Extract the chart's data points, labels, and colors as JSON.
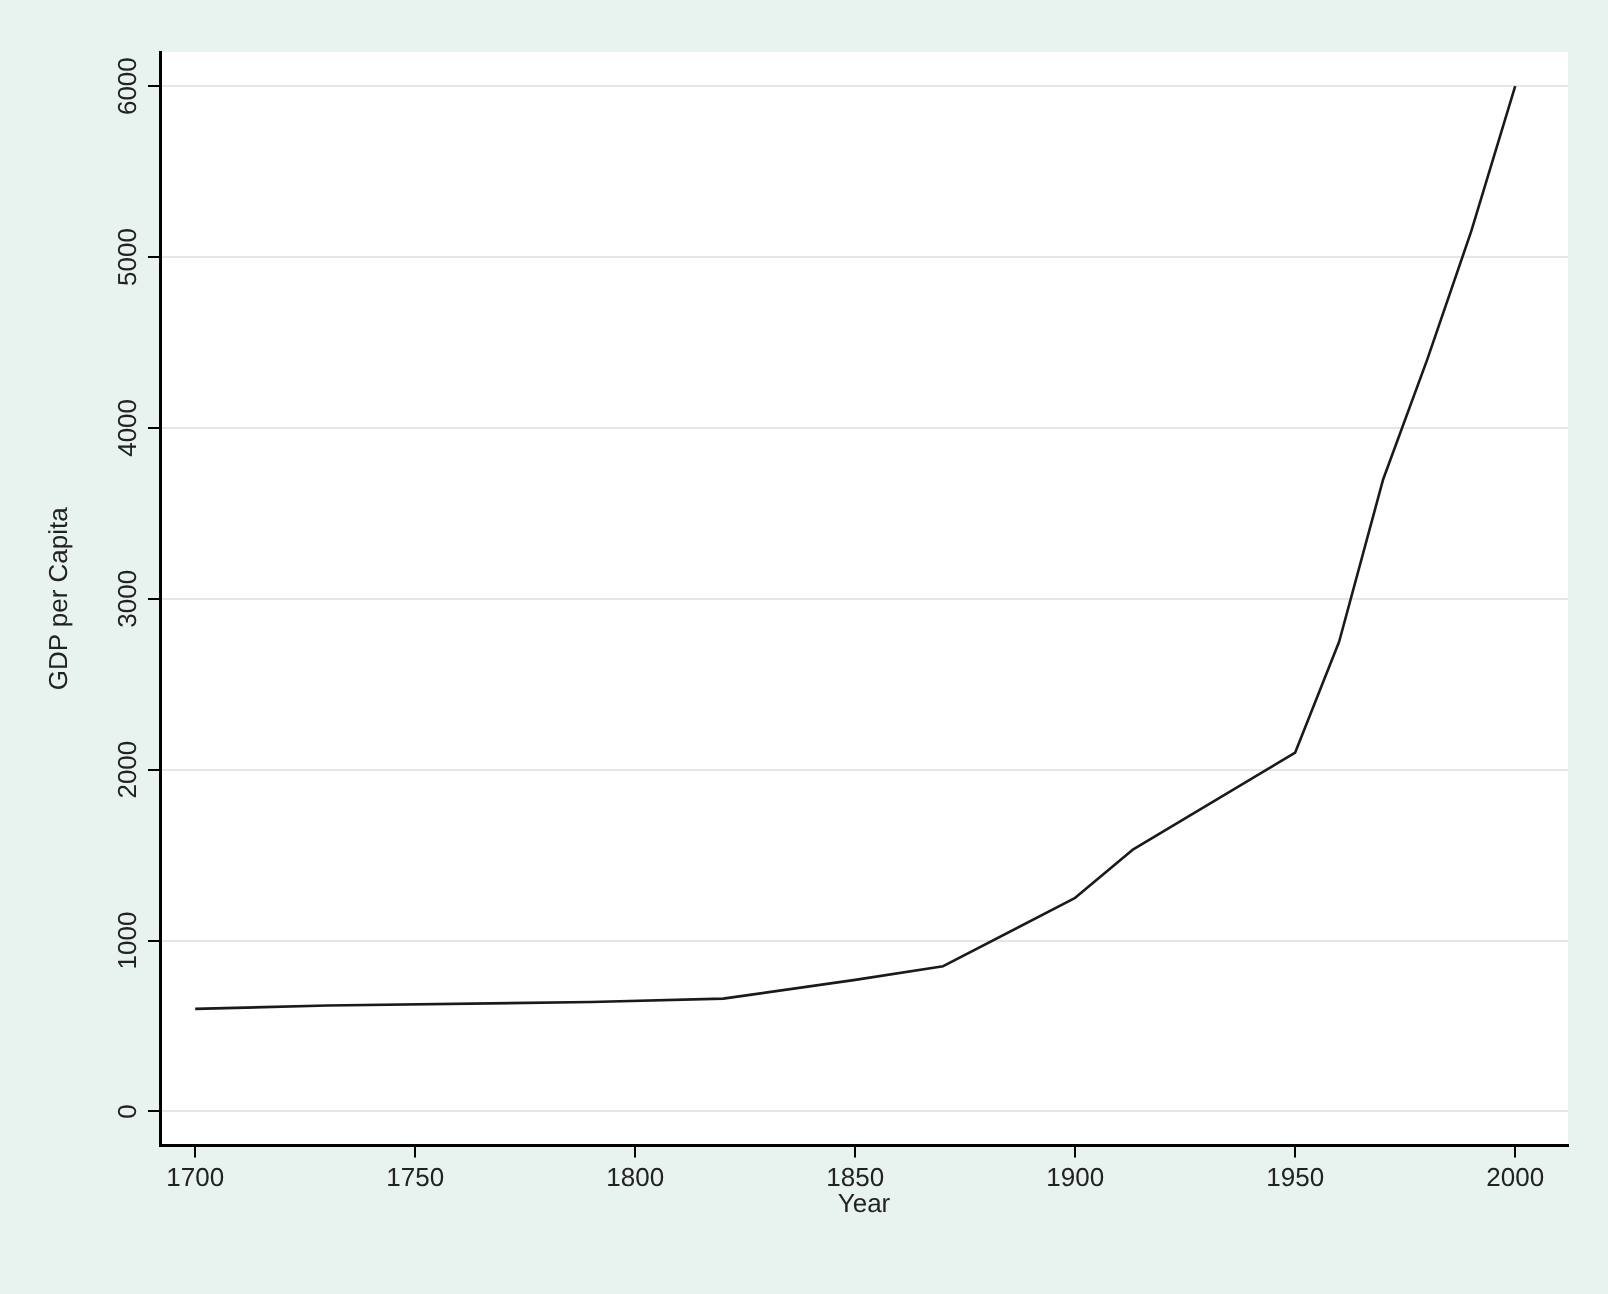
{
  "chart_data": {
    "type": "line",
    "xlabel": "Year",
    "ylabel": "GDP per Capita",
    "x": [
      1700,
      1730,
      1790,
      1820,
      1850,
      1870,
      1900,
      1913,
      1950,
      1960,
      1970,
      1980,
      1990,
      2000
    ],
    "series": [
      {
        "color": "#1a1a1a",
        "values": [
          600,
          620,
          640,
          660,
          770,
          850,
          1250,
          1530,
          2100,
          2750,
          3700,
          4400,
          5150,
          6000
        ]
      }
    ],
    "xlim": [
      1692,
      2012
    ],
    "xticks": [
      1700,
      1750,
      1800,
      1850,
      1900,
      1950,
      2000
    ],
    "ylim": [
      -200,
      6200
    ],
    "yticks": [
      0,
      1000,
      2000,
      3000,
      4000,
      5000,
      6000
    ],
    "grid": "y",
    "legend": false,
    "marker": "none",
    "line_style": "solid"
  }
}
